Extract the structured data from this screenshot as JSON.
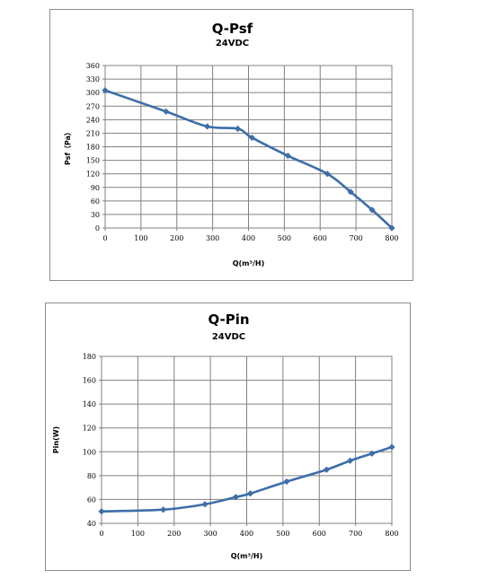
{
  "chart_data": [
    {
      "type": "line",
      "title": "Q-Psf",
      "subtitle": "24VDC",
      "xlabel": "Q(m³/H)",
      "ylabel": "Psf（Pa）",
      "xlim": [
        0,
        800
      ],
      "ylim": [
        0,
        360
      ],
      "xticks": [
        0,
        100,
        200,
        300,
        400,
        500,
        600,
        700,
        800
      ],
      "yticks": [
        0,
        30,
        60,
        90,
        120,
        150,
        180,
        210,
        240,
        270,
        300,
        330,
        360
      ],
      "grid": true,
      "series": [
        {
          "color": "#3d6ea8",
          "x": [
            0,
            170,
            285,
            370,
            410,
            510,
            620,
            685,
            745,
            800
          ],
          "y": [
            305,
            258,
            225,
            220,
            200,
            160,
            120,
            80,
            40,
            0
          ]
        }
      ]
    },
    {
      "type": "line",
      "title": "Q-Pin",
      "subtitle": "24VDC",
      "xlabel": "Q(m³/H)",
      "ylabel": "Pin(W)",
      "xlim": [
        0,
        800
      ],
      "ylim": [
        40,
        180
      ],
      "xticks": [
        0,
        100,
        200,
        300,
        400,
        500,
        600,
        700,
        800
      ],
      "yticks": [
        40,
        60,
        80,
        100,
        120,
        140,
        160,
        180
      ],
      "grid": true,
      "series": [
        {
          "color": "#3d6ea8",
          "x": [
            0,
            170,
            285,
            370,
            410,
            510,
            620,
            685,
            745,
            800
          ],
          "y": [
            50,
            51.5,
            56,
            62,
            65,
            75,
            85,
            92.5,
            98.5,
            104
          ]
        }
      ]
    }
  ]
}
